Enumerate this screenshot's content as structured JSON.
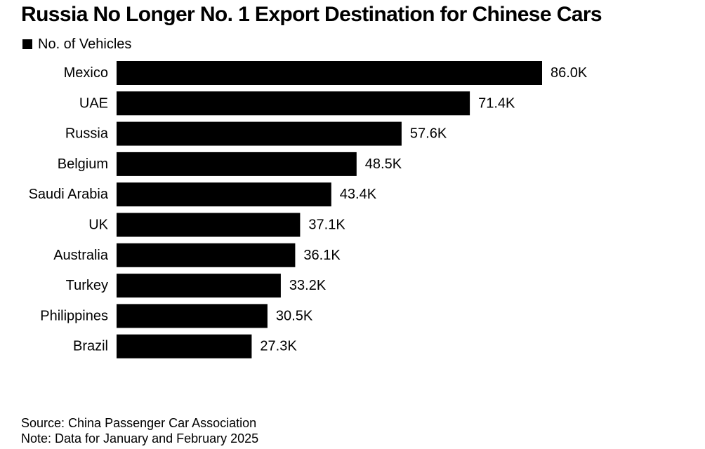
{
  "chart_data": {
    "type": "bar",
    "orientation": "horizontal",
    "title": "Russia No Longer No. 1 Export Destination for Chinese Cars",
    "legend": "No. of Vehicles",
    "legend_position": "top-left",
    "categories": [
      "Mexico",
      "UAE",
      "Russia",
      "Belgium",
      "Saudi Arabia",
      "UK",
      "Australia",
      "Turkey",
      "Philippines",
      "Brazil"
    ],
    "series": [
      {
        "name": "No. of Vehicles",
        "values": [
          86.0,
          71.4,
          57.6,
          48.5,
          43.4,
          37.1,
          36.1,
          33.2,
          30.5,
          27.3
        ],
        "labels": [
          "86.0K",
          "71.4K",
          "57.6K",
          "48.5K",
          "43.4K",
          "37.1K",
          "36.1K",
          "33.2K",
          "30.5K",
          "27.3K"
        ],
        "color": "#000000"
      }
    ],
    "grid": false,
    "xlim": [
      0,
      86.0
    ]
  },
  "footer": {
    "source": "Source: China Passenger Car Association",
    "note": "Note: Data for January and February 2025"
  }
}
